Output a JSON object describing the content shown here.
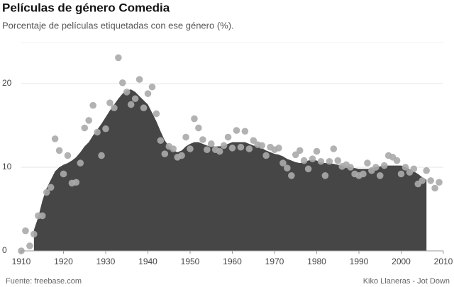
{
  "chart_data": {
    "type": "area",
    "title": "Películas de género Comedia",
    "subtitle": "Porcentaje de películas etiquetadas con ese género (%).",
    "source": "Fuente: freebase.com",
    "credit": "Kiko Llaneras - Jot Down",
    "xlim": [
      1910,
      2010
    ],
    "xticks": [
      1910,
      1920,
      1930,
      1940,
      1950,
      1960,
      1970,
      1980,
      1990,
      2000,
      2010
    ],
    "ylim": [
      0,
      25
    ],
    "yticks": [
      0,
      10,
      20
    ],
    "grid": true,
    "series": [
      {
        "type": "area",
        "color": "#464646",
        "x": [
          1913,
          1914,
          1915,
          1916,
          1917,
          1918,
          1919,
          1920,
          1921,
          1922,
          1923,
          1924,
          1925,
          1926,
          1927,
          1928,
          1929,
          1930,
          1931,
          1932,
          1933,
          1934,
          1935,
          1936,
          1937,
          1938,
          1939,
          1940,
          1941,
          1942,
          1943,
          1944,
          1945,
          1946,
          1947,
          1948,
          1949,
          1950,
          1951,
          1952,
          1953,
          1954,
          1955,
          1956,
          1957,
          1958,
          1959,
          1960,
          1961,
          1962,
          1963,
          1964,
          1965,
          1966,
          1967,
          1968,
          1969,
          1970,
          1971,
          1972,
          1973,
          1974,
          1975,
          1976,
          1977,
          1978,
          1979,
          1980,
          1981,
          1982,
          1983,
          1984,
          1985,
          1986,
          1987,
          1988,
          1989,
          1990,
          1991,
          1992,
          1993,
          1994,
          1995,
          1996,
          1997,
          1998,
          1999,
          2000,
          2001,
          2002,
          2003,
          2004,
          2005,
          2006
        ],
        "values": [
          2.5,
          4,
          6,
          7.5,
          8.5,
          9.5,
          10,
          10.3,
          10.5,
          10.8,
          11.2,
          11.8,
          12.5,
          13,
          13.8,
          14.5,
          15.2,
          16,
          16.8,
          17.5,
          18.2,
          18.8,
          19.2,
          19.3,
          19,
          18.5,
          18,
          17.5,
          16.5,
          15.5,
          14.3,
          13.2,
          12.5,
          12,
          11.8,
          12,
          12.5,
          12.8,
          13,
          13,
          12.8,
          12.6,
          12.5,
          12.5,
          12.5,
          12.6,
          12.8,
          13,
          13,
          13,
          13,
          12.8,
          12.6,
          12.5,
          12.3,
          12,
          11.8,
          11.6,
          11.5,
          11.3,
          11,
          10.8,
          10.6,
          10.5,
          10.6,
          10.8,
          10.9,
          10.8,
          10.6,
          10.5,
          10.5,
          10.4,
          10.3,
          10.2,
          10.1,
          10,
          9.9,
          9.8,
          9.8,
          9.8,
          9.9,
          10,
          10.1,
          10.2,
          10.2,
          10.2,
          10.2,
          10.2,
          10,
          9.8,
          9.5,
          9.2,
          8.8,
          8.5
        ]
      },
      {
        "type": "scatter",
        "color": "#aaaaaa",
        "x": [
          1910,
          1911,
          1912,
          1913,
          1914,
          1915,
          1916,
          1917,
          1918,
          1919,
          1920,
          1921,
          1922,
          1923,
          1924,
          1925,
          1926,
          1927,
          1928,
          1929,
          1930,
          1931,
          1932,
          1933,
          1934,
          1935,
          1936,
          1937,
          1938,
          1939,
          1940,
          1941,
          1942,
          1943,
          1944,
          1945,
          1946,
          1947,
          1948,
          1949,
          1950,
          1951,
          1952,
          1953,
          1954,
          1955,
          1956,
          1957,
          1958,
          1959,
          1960,
          1961,
          1962,
          1963,
          1964,
          1965,
          1966,
          1967,
          1968,
          1969,
          1970,
          1971,
          1972,
          1973,
          1974,
          1975,
          1976,
          1977,
          1978,
          1979,
          1980,
          1981,
          1982,
          1983,
          1984,
          1985,
          1986,
          1987,
          1988,
          1989,
          1990,
          1991,
          1992,
          1993,
          1994,
          1995,
          1996,
          1997,
          1998,
          1999,
          2000,
          2001,
          2002,
          2003,
          2004,
          2005,
          2006,
          2007,
          2008,
          2009
        ],
        "values": [
          0,
          2.4,
          0.6,
          2.0,
          4.2,
          4.2,
          7.0,
          7.6,
          13.4,
          12.0,
          9.2,
          11.4,
          8.1,
          8.2,
          10.5,
          14.7,
          15.6,
          17.4,
          14.2,
          11.4,
          14.6,
          17.7,
          17.1,
          23.1,
          20.1,
          19.0,
          17.5,
          18.2,
          20.5,
          17.1,
          18.8,
          19.6,
          16.4,
          13.2,
          11.6,
          12.5,
          12.2,
          11.2,
          11.4,
          13.6,
          12.2,
          15.8,
          14.7,
          13.3,
          12.1,
          12.8,
          12.1,
          11.9,
          12.6,
          13.6,
          12.3,
          14.4,
          12.4,
          14.3,
          12.2,
          13.2,
          12.7,
          12.6,
          11.4,
          12.4,
          12.1,
          12.3,
          10.5,
          9.9,
          9.0,
          11.5,
          12.0,
          10.8,
          9.8,
          11.0,
          11.9,
          10.7,
          9.0,
          10.7,
          12.2,
          10.8,
          10.1,
          10.3,
          10.0,
          9.2,
          9.0,
          9.2,
          10.5,
          9.6,
          10.0,
          9.0,
          10.2,
          11.4,
          11.2,
          10.8,
          9.2,
          10.0,
          9.4,
          9.8,
          8.0,
          8.4,
          9.6,
          8.4,
          7.5,
          8.2
        ]
      }
    ]
  }
}
